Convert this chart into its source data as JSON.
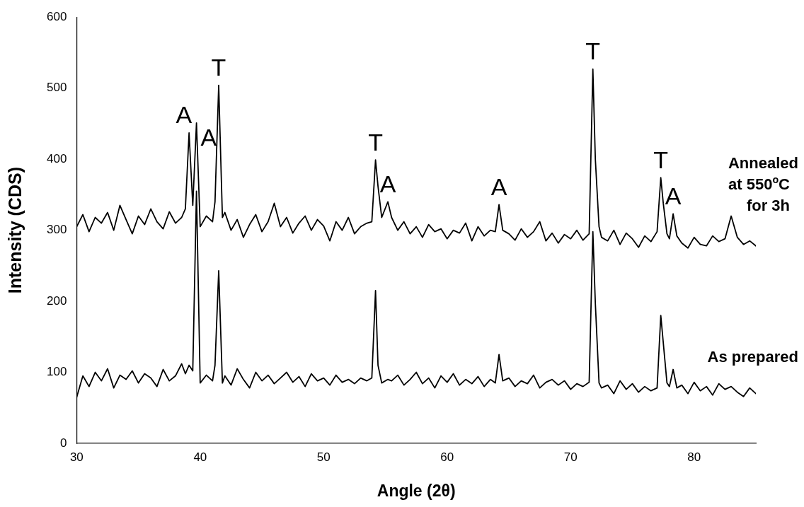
{
  "chart_data": {
    "type": "line",
    "xlabel": "Angle (2θ)",
    "ylabel": "Intensity (CDS)",
    "x": [
      30,
      30.5,
      31,
      31.5,
      32,
      32.5,
      33,
      33.5,
      34,
      34.5,
      35,
      35.5,
      36,
      36.5,
      37,
      37.5,
      38,
      38.5,
      38.8,
      39.1,
      39.4,
      39.7,
      40,
      40.5,
      41,
      41.2,
      41.5,
      41.8,
      42,
      42.5,
      43,
      43.5,
      44,
      44.5,
      45,
      45.5,
      46,
      46.5,
      47,
      47.5,
      48,
      48.5,
      49,
      49.5,
      50,
      50.5,
      51,
      51.5,
      52,
      52.5,
      53,
      53.5,
      53.9,
      54.2,
      54.4,
      54.7,
      55.2,
      55.5,
      56,
      56.5,
      57,
      57.5,
      58,
      58.5,
      59,
      59.5,
      60,
      60.5,
      61,
      61.5,
      62,
      62.5,
      63,
      63.5,
      63.9,
      64.2,
      64.5,
      65,
      65.5,
      66,
      66.5,
      67,
      67.5,
      68,
      68.5,
      69,
      69.5,
      70,
      70.5,
      71,
      71.5,
      71.8,
      72,
      72.3,
      72.5,
      73,
      73.5,
      74,
      74.5,
      75,
      75.5,
      76,
      76.5,
      77,
      77.3,
      77.5,
      77.8,
      78,
      78.3,
      78.6,
      79,
      79.5,
      80,
      80.5,
      81,
      81.5,
      82,
      82.5,
      83,
      83.5,
      84,
      84.5,
      85
    ],
    "series": [
      {
        "name": "Annealed at 550$^{o}$C for 3h",
        "color": "#000000",
        "values": [
          305,
          322,
          298,
          318,
          310,
          325,
          300,
          335,
          315,
          295,
          320,
          308,
          330,
          312,
          302,
          326,
          310,
          318,
          330,
          437,
          335,
          451,
          305,
          320,
          312,
          340,
          504,
          318,
          325,
          300,
          315,
          290,
          308,
          322,
          298,
          312,
          338,
          305,
          318,
          296,
          310,
          320,
          300,
          315,
          306,
          285,
          312,
          300,
          318,
          295,
          305,
          310,
          312,
          399,
          362,
          318,
          340,
          318,
          300,
          312,
          295,
          305,
          290,
          308,
          298,
          302,
          288,
          300,
          296,
          310,
          285,
          305,
          292,
          300,
          298,
          336,
          300,
          295,
          286,
          302,
          290,
          298,
          312,
          285,
          296,
          282,
          294,
          288,
          300,
          286,
          295,
          527,
          400,
          305,
          290,
          285,
          300,
          280,
          296,
          288,
          276,
          292,
          284,
          298,
          374,
          338,
          295,
          288,
          323,
          292,
          282,
          275,
          290,
          280,
          278,
          292,
          284,
          288,
          320,
          290,
          280,
          285,
          278
        ]
      },
      {
        "name": "As prepared",
        "color": "#000000",
        "values": [
          65,
          95,
          80,
          100,
          88,
          105,
          78,
          96,
          90,
          102,
          85,
          98,
          92,
          80,
          104,
          88,
          95,
          112,
          98,
          110,
          102,
          355,
          85,
          96,
          88,
          110,
          243,
          85,
          95,
          82,
          105,
          90,
          78,
          100,
          88,
          96,
          84,
          92,
          100,
          86,
          94,
          80,
          98,
          88,
          92,
          82,
          96,
          86,
          90,
          84,
          92,
          88,
          92,
          215,
          110,
          85,
          90,
          88,
          96,
          82,
          90,
          100,
          84,
          92,
          78,
          95,
          86,
          98,
          82,
          90,
          84,
          94,
          80,
          90,
          85,
          125,
          88,
          92,
          80,
          88,
          84,
          96,
          78,
          86,
          90,
          82,
          88,
          76,
          84,
          80,
          86,
          298,
          197,
          85,
          78,
          82,
          70,
          88,
          76,
          84,
          72,
          80,
          74,
          78,
          180,
          142,
          85,
          80,
          104,
          78,
          82,
          70,
          86,
          74,
          80,
          68,
          84,
          76,
          80,
          72,
          66,
          78,
          70
        ]
      }
    ],
    "xlim": [
      30,
      85
    ],
    "xticks": [
      30,
      40,
      50,
      60,
      70,
      80
    ],
    "ylim": [
      0,
      600
    ],
    "yticks": [
      0,
      100,
      200,
      300,
      400,
      500,
      600
    ],
    "grid": false,
    "legend": false,
    "marker": "none",
    "line_style": "solid",
    "annotations": [
      {
        "text": "A",
        "x": 39.1,
        "y": 437
      },
      {
        "text": "A",
        "x": 39.7,
        "y": 451
      },
      {
        "text": "T",
        "x": 41.5,
        "y": 504
      },
      {
        "text": "T",
        "x": 54.2,
        "y": 399
      },
      {
        "text": "A",
        "x": 55.2,
        "y": 340
      },
      {
        "text": "A",
        "x": 64.2,
        "y": 336
      },
      {
        "text": "T",
        "x": 71.8,
        "y": 527
      },
      {
        "text": "T",
        "x": 77.3,
        "y": 374
      },
      {
        "text": "A",
        "x": 78.3,
        "y": 323
      }
    ]
  }
}
